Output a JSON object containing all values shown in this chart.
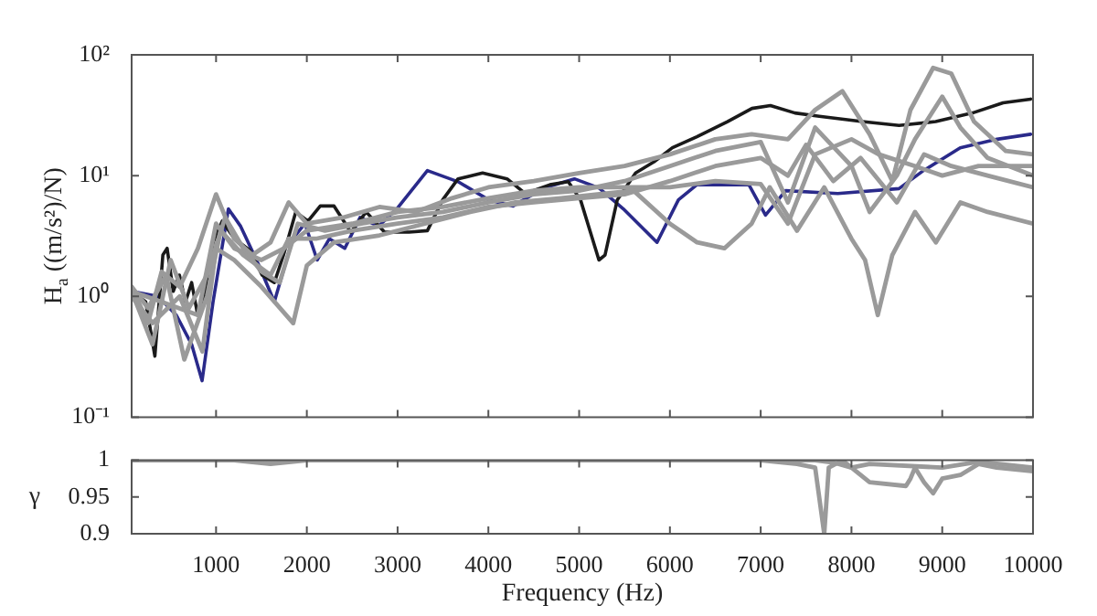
{
  "chart_data": [
    {
      "type": "line",
      "ylabel": "H$_{a}$ ((m/s²)/N)",
      "log": "y",
      "grid": false,
      "legend": false,
      "marker": "none",
      "line_style": "solid",
      "tick_labels": "y",
      "xlim": [
        70,
        10000
      ],
      "xticks": [
        {
          "value": 1000,
          "label": null
        },
        {
          "value": 2000,
          "label": null
        },
        {
          "value": 3000,
          "label": null
        },
        {
          "value": 4000,
          "label": null
        },
        {
          "value": 5000,
          "label": null
        },
        {
          "value": 6000,
          "label": null
        },
        {
          "value": 7000,
          "label": null
        },
        {
          "value": 8000,
          "label": null
        },
        {
          "value": 9000,
          "label": null
        },
        {
          "value": 10000,
          "label": null
        }
      ],
      "ylim": [
        0.1,
        100
      ],
      "yticks": [
        {
          "value": 0.1,
          "label": "10⁻¹"
        },
        {
          "value": 1,
          "label": "10⁰"
        },
        {
          "value": 10,
          "label": "10¹"
        },
        {
          "value": 100,
          "label": "10²"
        }
      ],
      "series": [
        {
          "color": "#9a9a9a",
          "x": [
            70,
            250,
            400,
            600,
            800,
            1000,
            1200,
            1400,
            1600,
            1800,
            2000,
            2400,
            2800,
            3200,
            3600,
            4000,
            4500,
            5000,
            5500,
            6000,
            6500,
            6900,
            7300,
            7600,
            7900,
            8200,
            8450,
            8650,
            8900,
            9100,
            9350,
            9700,
            10000
          ],
          "values": [
            1.2,
            0.6,
            1.6,
            1.2,
            2.5,
            7,
            3,
            2.2,
            2.8,
            6,
            4,
            4.5,
            5.5,
            5,
            6.5,
            8,
            9,
            10.5,
            12,
            15,
            20,
            22,
            20,
            35,
            50,
            22,
            9,
            35,
            78,
            70,
            28,
            16,
            15
          ]
        },
        {
          "color": "#9a9a9a",
          "x": [
            70,
            300,
            500,
            700,
            900,
            1100,
            1300,
            1500,
            1700,
            1900,
            2200,
            2600,
            3000,
            3500,
            4000,
            4500,
            5000,
            5500,
            6000,
            6500,
            7000,
            7300,
            7600,
            8000,
            8200,
            8500,
            8700,
            9000,
            9200,
            9500,
            10000
          ],
          "values": [
            1.1,
            0.4,
            2,
            0.8,
            1.5,
            4.5,
            2.5,
            1.6,
            1.3,
            4,
            3.5,
            4,
            4.5,
            5,
            6,
            7,
            7.5,
            9,
            12,
            16,
            19,
            6,
            25,
            12,
            5,
            10,
            20,
            45,
            25,
            14,
            10
          ]
        },
        {
          "color": "#9a9a9a",
          "x": [
            70,
            300,
            600,
            850,
            1000,
            1200,
            1500,
            1850,
            2000,
            2300,
            2800,
            3300,
            3800,
            4300,
            4800,
            5200,
            5600,
            6000,
            6300,
            6600,
            6900,
            7100,
            7400,
            7700,
            8000,
            8150,
            8290,
            8450,
            8700,
            8930,
            9200,
            9500,
            10000
          ],
          "values": [
            1,
            0.6,
            1,
            0.35,
            2.5,
            2,
            1.2,
            0.6,
            1.8,
            2.8,
            3.2,
            4,
            5,
            6,
            6.5,
            7,
            7.5,
            4,
            2.8,
            2.5,
            4,
            8,
            3.5,
            8,
            3,
            2,
            0.7,
            2.2,
            5,
            2.8,
            6,
            5,
            4
          ]
        },
        {
          "color": "#9a9a9a",
          "x": [
            70,
            250,
            450,
            650,
            900,
            1050,
            1300,
            1600,
            1800,
            2100,
            2500,
            3000,
            3500,
            4000,
            4500,
            5000,
            5500,
            6000,
            6500,
            7000,
            7300,
            7500,
            7800,
            8100,
            8500,
            8800,
            9100,
            9500,
            10000
          ],
          "values": [
            1.2,
            0.8,
            1.5,
            0.3,
            1,
            3.5,
            2.2,
            1.5,
            3,
            3,
            3.5,
            4,
            4.5,
            5.5,
            6,
            6.5,
            7,
            9,
            12,
            14,
            10,
            18,
            9,
            14,
            6,
            15,
            12,
            10,
            8
          ]
        },
        {
          "color": "#9a9a9a",
          "x": [
            70,
            400,
            800,
            1000,
            1200,
            1500,
            1750,
            2000,
            2500,
            3000,
            3500,
            4000,
            4500,
            5000,
            5500,
            6000,
            6500,
            7000,
            7300,
            7600,
            8000,
            8300,
            8700,
            9000,
            9400,
            10000
          ],
          "values": [
            1.1,
            0.9,
            0.7,
            4,
            2.5,
            2,
            2.5,
            3.5,
            4,
            5,
            5.5,
            6.5,
            7.5,
            8,
            8,
            8,
            9,
            8.5,
            4,
            15,
            20,
            15,
            12,
            10,
            12,
            12
          ]
        },
        {
          "color": "#1a1a1a",
          "x": [
            70,
            225,
            326,
            414,
            461,
            528,
            596,
            663,
            731,
            798,
            866,
            967,
            1068,
            1203,
            1372,
            1507,
            1642,
            1743,
            1878,
            2013,
            2148,
            2300,
            2485,
            2654,
            2856,
            3126,
            3328,
            3497,
            3666,
            3936,
            4206,
            4408,
            4678,
            4880,
            5015,
            5218,
            5285,
            5420,
            5622,
            5825,
            6027,
            6297,
            6634,
            6904,
            7107,
            7377,
            7646,
            8119,
            8524,
            8928,
            9333,
            9670,
            9974
          ],
          "values": [
            1.1,
            0.9,
            0.32,
            2.2,
            2.5,
            1.1,
            1.5,
            0.9,
            1.3,
            0.7,
            1,
            2.8,
            4.2,
            3,
            2.4,
            1.5,
            1.3,
            2.2,
            5,
            4.2,
            5.6,
            5.6,
            3.4,
            5,
            3.4,
            3.4,
            3.5,
            6.3,
            9.4,
            10.5,
            9.4,
            7.1,
            8.4,
            8.9,
            6.3,
            2,
            2.2,
            6.3,
            10.5,
            13,
            17,
            21,
            28,
            36,
            38,
            33,
            31,
            28,
            26,
            28,
            33,
            40,
            43
          ]
        },
        {
          "color": "#2a2a8a",
          "x": [
            70,
            360,
            562,
            731,
            846,
            967,
            1136,
            1271,
            1473,
            1642,
            1844,
            1979,
            2114,
            2249,
            2418,
            2586,
            2789,
            2991,
            3328,
            3666,
            4003,
            4273,
            4610,
            4948,
            5218,
            5487,
            5858,
            6094,
            6297,
            6870,
            7053,
            7275,
            7849,
            8524,
            8793,
            9198,
            9603,
            9974
          ],
          "values": [
            1.1,
            1,
            0.7,
            0.4,
            0.2,
            0.9,
            5.3,
            3.8,
            1.8,
            0.9,
            3,
            4,
            2,
            3,
            2.5,
            4.5,
            3.8,
            5.3,
            11,
            8.9,
            6.3,
            5.6,
            7.9,
            9.4,
            7.9,
            5.3,
            2.8,
            6.3,
            8.4,
            8.4,
            4.7,
            7.5,
            7.1,
            7.8,
            11,
            17,
            20,
            22
          ]
        }
      ]
    },
    {
      "type": "line",
      "xlabel": "Frequency (Hz)",
      "ylabel": "γ",
      "grid": false,
      "legend": false,
      "marker": "none",
      "line_style": "solid",
      "xlim": [
        70,
        10000
      ],
      "xticks": [
        1000,
        2000,
        3000,
        4000,
        5000,
        6000,
        7000,
        8000,
        9000,
        10000
      ],
      "ylim": [
        0.9,
        1
      ],
      "yticks": [
        0.9,
        0.95,
        1
      ],
      "series": [
        {
          "color": "#9a9a9a",
          "x": [
            70,
            1200,
            1600,
            2000,
            7000,
            7400,
            7600,
            7700,
            7750,
            7900,
            8100,
            8200,
            8600,
            8650,
            8700,
            8800,
            8900,
            9000,
            9200,
            9400,
            9600,
            10000
          ],
          "values": [
            1,
            1,
            0.995,
            1,
            1,
            0.995,
            0.99,
            0.9,
            0.99,
            1,
            0.98,
            0.97,
            0.965,
            0.975,
            0.99,
            0.97,
            0.955,
            0.975,
            0.98,
            0.995,
            0.99,
            0.985
          ]
        },
        {
          "color": "#9a9a9a",
          "x": [
            70,
            7000,
            7600,
            7800,
            8000,
            8200,
            9000,
            9400,
            10000
          ],
          "values": [
            1,
            1,
            1,
            0.997,
            0.99,
            0.995,
            0.99,
            0.998,
            0.99
          ]
        }
      ]
    }
  ]
}
